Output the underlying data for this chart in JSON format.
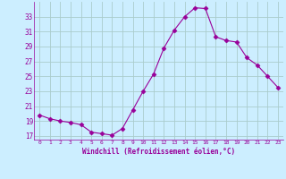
{
  "x": [
    0,
    1,
    2,
    3,
    4,
    5,
    6,
    7,
    8,
    9,
    10,
    11,
    12,
    13,
    14,
    15,
    16,
    17,
    18,
    19,
    20,
    21,
    22,
    23
  ],
  "y": [
    19.8,
    19.3,
    19.0,
    18.8,
    18.5,
    17.5,
    17.3,
    17.1,
    18.0,
    20.5,
    23.0,
    25.3,
    28.8,
    31.2,
    33.0,
    34.2,
    34.1,
    30.3,
    29.8,
    29.6,
    27.5,
    26.5,
    25.0,
    23.5
  ],
  "line_color": "#990099",
  "marker": "D",
  "marker_size": 2.5,
  "bg_color": "#cceeff",
  "grid_color": "#aacccc",
  "xlabel": "Windchill (Refroidissement éolien,°C)",
  "xlabel_color": "#990099",
  "tick_color": "#990099",
  "yticks": [
    17,
    19,
    21,
    23,
    25,
    27,
    29,
    31,
    33
  ],
  "xticks": [
    0,
    1,
    2,
    3,
    4,
    5,
    6,
    7,
    8,
    9,
    10,
    11,
    12,
    13,
    14,
    15,
    16,
    17,
    18,
    19,
    20,
    21,
    22,
    23
  ],
  "ylim": [
    16.5,
    35.0
  ],
  "xlim": [
    -0.5,
    23.5
  ]
}
